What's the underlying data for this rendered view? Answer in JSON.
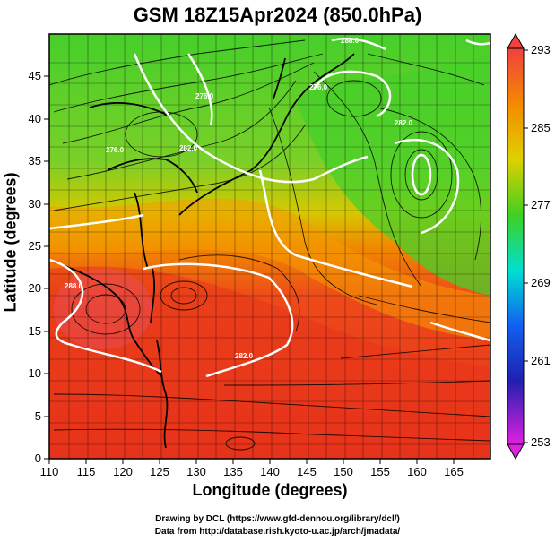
{
  "title": "GSM 18Z15Apr2024 (850.0hPa)",
  "axes": {
    "xlabel": "Longitude (degrees)",
    "ylabel": "Latitude  (degrees)",
    "xticks": [
      "110",
      "115",
      "120",
      "125",
      "130",
      "135",
      "140",
      "145",
      "150",
      "155",
      "160",
      "165"
    ],
    "yticks": [
      "0",
      "5",
      "10",
      "15",
      "20",
      "25",
      "30",
      "35",
      "40",
      "45"
    ],
    "xrange": [
      110,
      170
    ],
    "yrange": [
      0,
      50
    ]
  },
  "colorbar": {
    "ticks": [
      "293",
      "285",
      "277",
      "269",
      "261",
      "253"
    ],
    "range": [
      253,
      293
    ]
  },
  "contour_labels": [
    "288.0",
    "282.0",
    "276.0",
    "282.0",
    "276.0",
    "276.0",
    "288.0",
    "282.0"
  ],
  "credits": {
    "line1": "Drawing by DCL (https://www.gfd-dennou.org/library/dcl/)",
    "line2": "Data from http://database.rish.kyoto-u.ac.jp/arch/jmadata/"
  },
  "colors": {
    "warm": "#e83a1e",
    "mid": "#f4b000",
    "cool": "#38d020",
    "contour": "#ffffff"
  }
}
